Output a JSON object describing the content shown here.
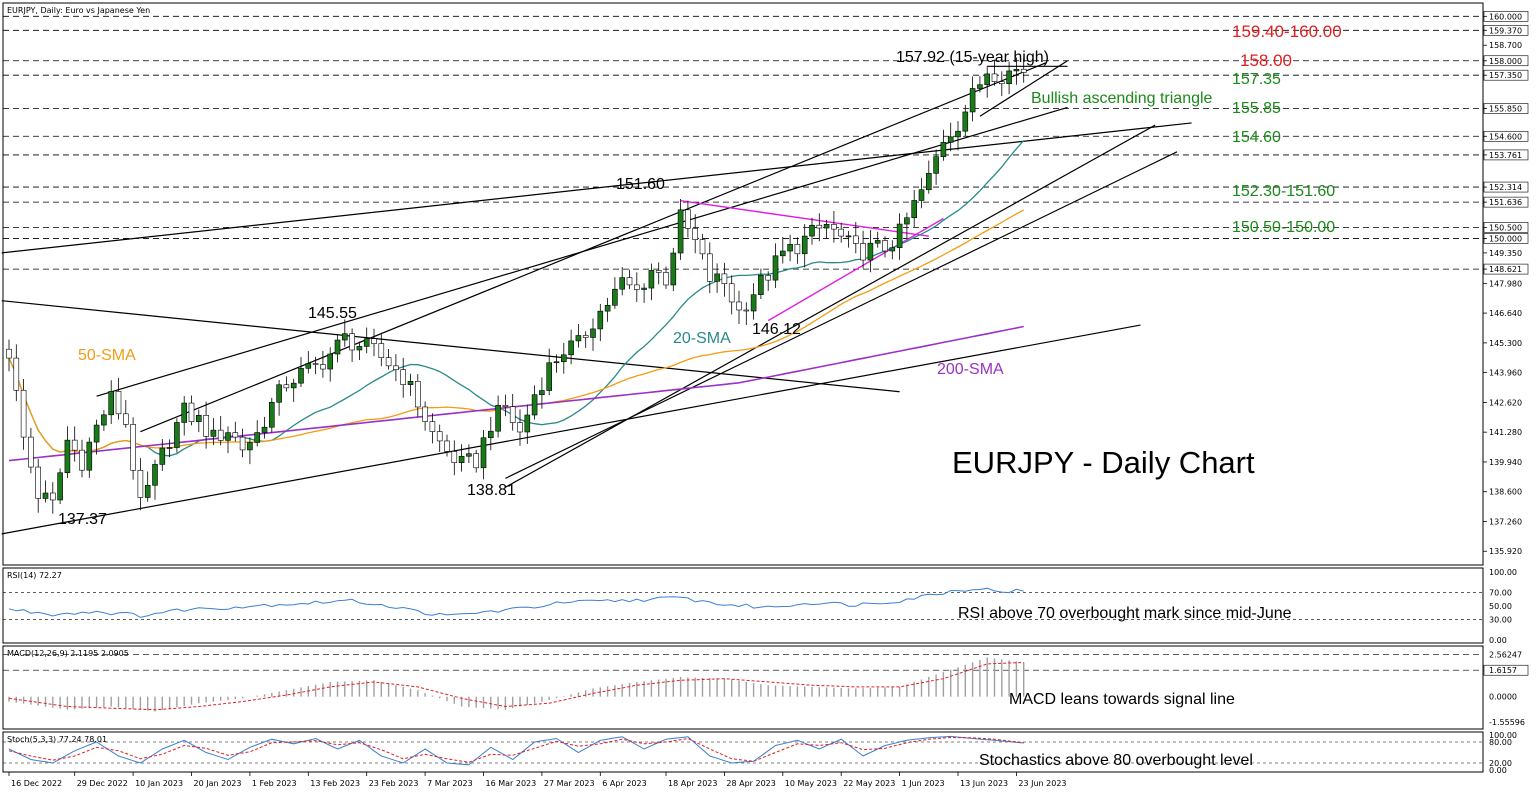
{
  "chart_data": [
    {
      "type": "candlestick",
      "title": "EURJPY, Daily: Euro vs Japanese Yen",
      "caption": "EURJPY - Daily Chart",
      "ylim": [
        135.3,
        160.6
      ],
      "y_ticks": [
        "160.000",
        "159.370",
        "158.700",
        "158.000",
        "157.350",
        "155.850",
        "154.600",
        "153.761",
        "152.314",
        "151.636",
        "150.500",
        "150.000",
        "149.350",
        "148.621",
        "147.980",
        "146.640",
        "145.300",
        "143.960",
        "142.620",
        "141.280",
        "139.940",
        "138.600",
        "137.260",
        "135.920"
      ],
      "highlighted_ticks": [
        "160.000",
        "159.370",
        "158.000",
        "157.350",
        "155.850",
        "154.600",
        "153.761",
        "152.314",
        "151.636",
        "150.500",
        "150.000",
        "148.621"
      ],
      "x_labels": [
        "16 Dec 2022",
        "29 Dec 2022",
        "10 Jan 2023",
        "20 Jan 2023",
        "1 Feb 2023",
        "13 Feb 2023",
        "23 Feb 2023",
        "7 Mar 2023",
        "16 Mar 2023",
        "27 Mar 2023",
        "6 Apr 2023",
        "18 Apr 2023",
        "28 Apr 2023",
        "10 May 2023",
        "22 May 2023",
        "1 Jun 2023",
        "13 Jun 2023",
        "23 Jun 2023"
      ],
      "x_label_days": [
        0,
        9,
        17,
        25,
        33,
        41,
        49,
        57,
        65,
        73,
        81,
        90,
        98,
        106,
        114,
        122,
        130,
        138
      ],
      "close_anchors": [
        [
          0,
          144.9
        ],
        [
          2,
          141.0
        ],
        [
          4,
          138.5
        ],
        [
          6,
          138.0
        ],
        [
          8,
          140.9
        ],
        [
          10,
          140.0
        ],
        [
          12,
          141.5
        ],
        [
          14,
          142.8
        ],
        [
          16,
          141.7
        ],
        [
          18,
          137.9
        ],
        [
          20,
          139.5
        ],
        [
          22,
          141.0
        ],
        [
          24,
          142.2
        ],
        [
          26,
          141.8
        ],
        [
          28,
          141.0
        ],
        [
          30,
          141.4
        ],
        [
          32,
          140.6
        ],
        [
          34,
          141.2
        ],
        [
          36,
          142.5
        ],
        [
          38,
          143.5
        ],
        [
          40,
          143.9
        ],
        [
          42,
          144.2
        ],
        [
          44,
          144.8
        ],
        [
          46,
          145.5
        ],
        [
          48,
          145.2
        ],
        [
          50,
          144.9
        ],
        [
          52,
          144.4
        ],
        [
          54,
          143.8
        ],
        [
          56,
          142.6
        ],
        [
          58,
          141.2
        ],
        [
          60,
          140.4
        ],
        [
          62,
          139.8
        ],
        [
          64,
          140.0
        ],
        [
          66,
          141.7
        ],
        [
          68,
          142.4
        ],
        [
          70,
          141.2
        ],
        [
          72,
          143.0
        ],
        [
          74,
          144.2
        ],
        [
          76,
          145.0
        ],
        [
          78,
          145.2
        ],
        [
          80,
          146.3
        ],
        [
          82,
          147.1
        ],
        [
          84,
          148.0
        ],
        [
          86,
          147.6
        ],
        [
          88,
          148.6
        ],
        [
          90,
          148.2
        ],
        [
          92,
          150.9
        ],
        [
          94,
          149.8
        ],
        [
          96,
          148.2
        ],
        [
          98,
          148.0
        ],
        [
          100,
          146.7
        ],
        [
          102,
          147.6
        ],
        [
          104,
          148.4
        ],
        [
          106,
          149.3
        ],
        [
          108,
          149.7
        ],
        [
          110,
          150.2
        ],
        [
          112,
          150.6
        ],
        [
          114,
          150.0
        ],
        [
          116,
          149.4
        ],
        [
          118,
          149.5
        ],
        [
          120,
          149.6
        ],
        [
          122,
          150.2
        ],
        [
          124,
          151.5
        ],
        [
          126,
          152.7
        ],
        [
          128,
          154.5
        ],
        [
          130,
          155.2
        ],
        [
          132,
          156.4
        ],
        [
          134,
          157.6
        ],
        [
          136,
          157.4
        ],
        [
          138,
          157.6
        ],
        [
          139,
          157.6
        ]
      ],
      "price_labels": [
        "137.37",
        "145.55",
        "138.81",
        "151.60",
        "146.12",
        "157.92 (15-year high)"
      ],
      "levels_red": [
        "159.40-160.00",
        "158.00"
      ],
      "levels_green": [
        "157.35",
        "155.85",
        "154.60",
        "152.30-151.60",
        "150.50-150.00"
      ],
      "pattern_label": "Bullish ascending triangle",
      "series_labels": [
        "20-SMA",
        "50-SMA",
        "200-SMA"
      ],
      "series_colors": {
        "candle": "#1a7a1a",
        "sma20": "#2a8a8a",
        "sma50": "#f39c12",
        "sma200": "#9b30c8",
        "trend": "#000000",
        "pink": "#e020e0",
        "red_label": "#e02020",
        "green_label": "#1a8a1a"
      }
    },
    {
      "type": "line",
      "title": "RSI(14) 72.27",
      "annotation": "RSI above 70 overbought mark since mid-June",
      "y_ticks": [
        "100.00",
        "70.00",
        "50.00",
        "30.00",
        "0.00"
      ],
      "value_anchors": [
        [
          0,
          45
        ],
        [
          6,
          38
        ],
        [
          12,
          42
        ],
        [
          18,
          36
        ],
        [
          24,
          45
        ],
        [
          30,
          48
        ],
        [
          36,
          52
        ],
        [
          42,
          55
        ],
        [
          46,
          58
        ],
        [
          50,
          54
        ],
        [
          56,
          42
        ],
        [
          60,
          35
        ],
        [
          64,
          40
        ],
        [
          70,
          46
        ],
        [
          76,
          55
        ],
        [
          84,
          58
        ],
        [
          92,
          62
        ],
        [
          98,
          52
        ],
        [
          104,
          48
        ],
        [
          110,
          55
        ],
        [
          116,
          52
        ],
        [
          122,
          58
        ],
        [
          128,
          70
        ],
        [
          132,
          76
        ],
        [
          136,
          72
        ],
        [
          139,
          72
        ]
      ],
      "color": "#3b7fd4"
    },
    {
      "type": "bar",
      "title": "MACD(12,26,9) 2.1195 2.0905",
      "annotation": "MACD leans towards signal line",
      "y_ticks": [
        "2.56247",
        "1.6157",
        "0.0000",
        "-1.55596"
      ],
      "ylim": [
        -1.85,
        2.85
      ],
      "macd_anchors": [
        [
          0,
          -0.3
        ],
        [
          8,
          -0.8
        ],
        [
          14,
          -0.6
        ],
        [
          20,
          -0.9
        ],
        [
          26,
          -0.4
        ],
        [
          32,
          -0.1
        ],
        [
          38,
          0.4
        ],
        [
          44,
          0.9
        ],
        [
          50,
          1.0
        ],
        [
          56,
          0.4
        ],
        [
          62,
          -0.6
        ],
        [
          68,
          -0.8
        ],
        [
          74,
          -0.2
        ],
        [
          80,
          0.5
        ],
        [
          86,
          0.9
        ],
        [
          92,
          1.2
        ],
        [
          98,
          1.1
        ],
        [
          104,
          0.7
        ],
        [
          110,
          0.6
        ],
        [
          116,
          0.5
        ],
        [
          122,
          0.6
        ],
        [
          128,
          1.5
        ],
        [
          134,
          2.4
        ],
        [
          139,
          2.1
        ]
      ],
      "signal_anchors": [
        [
          0,
          -0.1
        ],
        [
          8,
          -0.6
        ],
        [
          14,
          -0.7
        ],
        [
          20,
          -0.8
        ],
        [
          26,
          -0.6
        ],
        [
          32,
          -0.3
        ],
        [
          38,
          0.1
        ],
        [
          44,
          0.6
        ],
        [
          50,
          0.9
        ],
        [
          56,
          0.6
        ],
        [
          62,
          -0.1
        ],
        [
          68,
          -0.6
        ],
        [
          74,
          -0.4
        ],
        [
          80,
          0.2
        ],
        [
          86,
          0.7
        ],
        [
          92,
          1.0
        ],
        [
          98,
          1.1
        ],
        [
          104,
          0.9
        ],
        [
          110,
          0.7
        ],
        [
          116,
          0.6
        ],
        [
          122,
          0.6
        ],
        [
          128,
          1.1
        ],
        [
          134,
          2.0
        ],
        [
          139,
          2.09
        ]
      ],
      "color_hist": "#a0a0a0",
      "color_signal": "#e02020"
    },
    {
      "type": "line",
      "title": "Stoch(5,3,3) 77.24 78.01",
      "annotation": "Stochastics above 80 overbought level",
      "y_ticks": [
        "100.00",
        "80.00",
        "20.00",
        "0.00"
      ],
      "k_anchors": [
        [
          0,
          60
        ],
        [
          3,
          30
        ],
        [
          6,
          20
        ],
        [
          9,
          55
        ],
        [
          12,
          80
        ],
        [
          15,
          40
        ],
        [
          18,
          20
        ],
        [
          21,
          60
        ],
        [
          24,
          85
        ],
        [
          27,
          50
        ],
        [
          30,
          30
        ],
        [
          33,
          65
        ],
        [
          36,
          88
        ],
        [
          39,
          75
        ],
        [
          42,
          90
        ],
        [
          45,
          60
        ],
        [
          48,
          85
        ],
        [
          51,
          40
        ],
        [
          54,
          20
        ],
        [
          57,
          60
        ],
        [
          60,
          20
        ],
        [
          63,
          15
        ],
        [
          66,
          65
        ],
        [
          69,
          30
        ],
        [
          72,
          80
        ],
        [
          75,
          90
        ],
        [
          78,
          50
        ],
        [
          81,
          85
        ],
        [
          84,
          95
        ],
        [
          87,
          60
        ],
        [
          90,
          88
        ],
        [
          93,
          95
        ],
        [
          96,
          40
        ],
        [
          99,
          20
        ],
        [
          102,
          25
        ],
        [
          105,
          70
        ],
        [
          108,
          85
        ],
        [
          111,
          60
        ],
        [
          114,
          88
        ],
        [
          117,
          40
        ],
        [
          120,
          70
        ],
        [
          123,
          85
        ],
        [
          126,
          92
        ],
        [
          129,
          96
        ],
        [
          132,
          90
        ],
        [
          135,
          85
        ],
        [
          139,
          77
        ]
      ],
      "d_anchors": [
        [
          0,
          55
        ],
        [
          3,
          40
        ],
        [
          6,
          28
        ],
        [
          9,
          40
        ],
        [
          12,
          65
        ],
        [
          15,
          55
        ],
        [
          18,
          32
        ],
        [
          21,
          45
        ],
        [
          24,
          70
        ],
        [
          27,
          62
        ],
        [
          30,
          42
        ],
        [
          33,
          52
        ],
        [
          36,
          78
        ],
        [
          39,
          80
        ],
        [
          42,
          84
        ],
        [
          45,
          72
        ],
        [
          48,
          78
        ],
        [
          51,
          58
        ],
        [
          54,
          32
        ],
        [
          57,
          45
        ],
        [
          60,
          32
        ],
        [
          63,
          22
        ],
        [
          66,
          45
        ],
        [
          69,
          42
        ],
        [
          72,
          62
        ],
        [
          75,
          82
        ],
        [
          78,
          68
        ],
        [
          81,
          75
        ],
        [
          84,
          88
        ],
        [
          87,
          75
        ],
        [
          90,
          80
        ],
        [
          93,
          90
        ],
        [
          96,
          60
        ],
        [
          99,
          32
        ],
        [
          102,
          25
        ],
        [
          105,
          50
        ],
        [
          108,
          75
        ],
        [
          111,
          70
        ],
        [
          114,
          78
        ],
        [
          117,
          58
        ],
        [
          120,
          62
        ],
        [
          123,
          78
        ],
        [
          126,
          88
        ],
        [
          129,
          93
        ],
        [
          132,
          92
        ],
        [
          135,
          88
        ],
        [
          139,
          78
        ]
      ],
      "color_k": "#3b7fd4",
      "color_d": "#e02020"
    }
  ]
}
